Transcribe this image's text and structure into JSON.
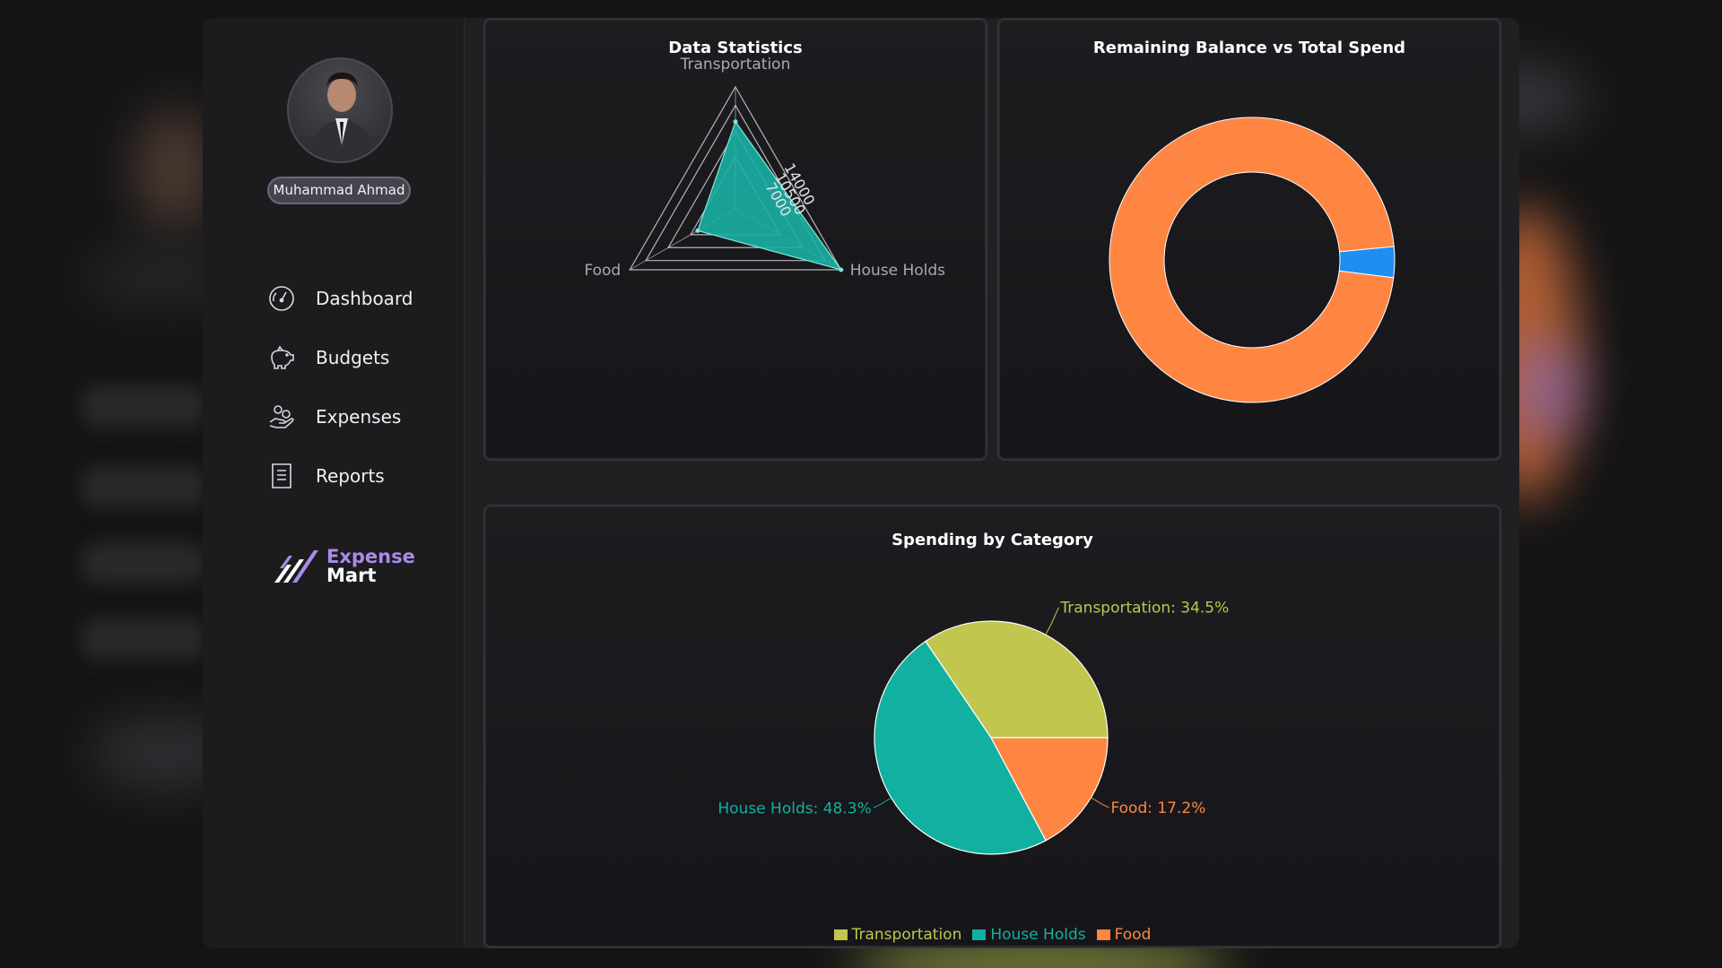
{
  "user": {
    "name": "Muhammad Ahmad"
  },
  "nav": [
    {
      "label": "Dashboard",
      "icon": "speedometer-icon"
    },
    {
      "label": "Budgets",
      "icon": "piggy-bank-icon"
    },
    {
      "label": "Expenses",
      "icon": "hand-coins-icon"
    },
    {
      "label": "Reports",
      "icon": "receipt-icon"
    }
  ],
  "brand": {
    "line1": "Expense",
    "line2": "Mart"
  },
  "colors": {
    "transportation": "#c0c64e",
    "households": "#12b0a0",
    "food": "#ff8642",
    "balance": "#1f8ef1",
    "radar_fill": "#1bb0a4"
  },
  "panels": {
    "data_statistics": "Data Statistics",
    "balance_vs_spend": "Remaining Balance vs Total Spend",
    "spending_by_category": "Spending by Category"
  },
  "chart_data": [
    {
      "type": "radar",
      "title": "Data Statistics",
      "categories": [
        "Transportation",
        "House Holds",
        "Food"
      ],
      "values": [
        11800,
        16500,
        5900
      ],
      "ticks": [
        "7000",
        "10500",
        "14000"
      ],
      "rmax": 16500
    },
    {
      "type": "pie",
      "subtype": "doughnut",
      "title": "Remaining Balance vs Total Spend",
      "slices": [
        {
          "key": "balance",
          "value": 3.5
        },
        {
          "key": "spend",
          "value": 96.5
        }
      ]
    },
    {
      "type": "pie",
      "title": "Spending by Category",
      "slices": [
        {
          "name": "Transportation",
          "value": 34.5,
          "label": "Transportation: 34.5%"
        },
        {
          "name": "House Holds",
          "value": 48.3,
          "label": "House Holds: 48.3%"
        },
        {
          "name": "Food",
          "value": 17.2,
          "label": "Food: 17.2%"
        }
      ],
      "legend": [
        "Transportation",
        "House Holds",
        "Food"
      ],
      "legend_position": "bottom"
    }
  ]
}
